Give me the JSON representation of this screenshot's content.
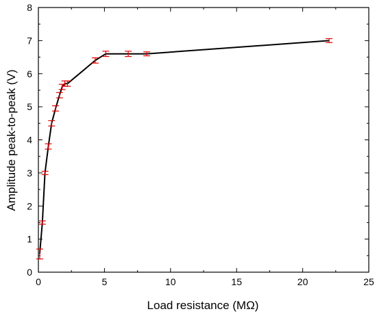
{
  "chart_data": {
    "type": "line",
    "xlabel": "Load resistance (MΩ)",
    "ylabel": "Amplitude peak-to-peak (V)",
    "xlim": [
      0,
      25
    ],
    "ylim": [
      0,
      8
    ],
    "x_ticks": [
      0,
      5,
      10,
      15,
      20,
      25
    ],
    "y_ticks": [
      0,
      1,
      2,
      3,
      4,
      5,
      6,
      7,
      8
    ],
    "grid": false,
    "legend": "none",
    "colors": {
      "line": "#000000",
      "error_bars": "#e00000",
      "axes": "#000000"
    },
    "series": [
      {
        "x": [
          0.1,
          0.3,
          0.5,
          0.75,
          1.0,
          1.3,
          1.6,
          1.8,
          2.0,
          2.2,
          4.3,
          5.1,
          6.8,
          8.2,
          22.0
        ],
        "y": [
          0.55,
          1.5,
          3.0,
          3.8,
          4.5,
          4.95,
          5.35,
          5.6,
          5.7,
          5.7,
          6.4,
          6.6,
          6.6,
          6.6,
          7.0
        ],
        "error": [
          0.15,
          0.05,
          0.05,
          0.08,
          0.08,
          0.08,
          0.08,
          0.08,
          0.08,
          0.08,
          0.08,
          0.08,
          0.08,
          0.06,
          0.06
        ]
      }
    ]
  }
}
